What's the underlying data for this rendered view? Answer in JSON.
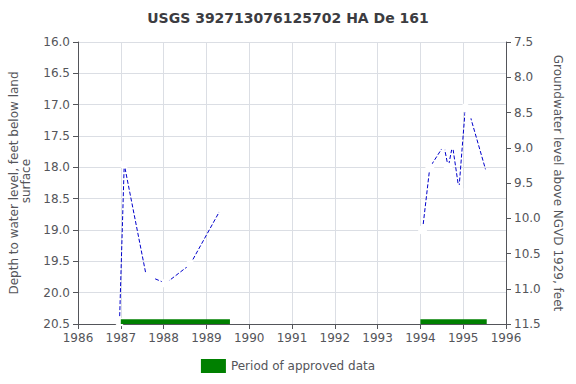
{
  "chart_data": {
    "type": "line",
    "title": "USGS 392713076125702 HA De 161",
    "ylabel": "Depth to water level, feet below land\n surface",
    "y2label": "Groundwater level above NGVD 1929, feet",
    "xlim": [
      1986,
      1996
    ],
    "xticks": [
      1986,
      1987,
      1988,
      1989,
      1990,
      1991,
      1992,
      1993,
      1994,
      1995,
      1996
    ],
    "ylim": [
      20.5,
      16.0
    ],
    "yticks": [
      {
        "value": 16.0,
        "label": "16.0"
      },
      16.5,
      {
        "value": 17.0,
        "label": "17.0"
      },
      17.5,
      {
        "value": 18.0,
        "label": "18.0"
      },
      18.5,
      {
        "value": 19.0,
        "label": "19.0"
      },
      19.5,
      {
        "value": 20.0,
        "label": "20.0"
      },
      20.5
    ],
    "y2lim": [
      11.5,
      7.5
    ],
    "y2ticks": [
      7.5,
      {
        "value": 8.0,
        "label": "8.0"
      },
      8.5,
      {
        "value": 9.0,
        "label": "9.0"
      },
      9.5,
      {
        "value": 10.0,
        "label": "10.0"
      },
      10.5,
      {
        "value": 11.0,
        "label": "11.0"
      },
      11.5
    ],
    "grid": true,
    "legend": "bottom",
    "series": [
      {
        "type": "line",
        "color": "#0000cc",
        "marker": "circle",
        "line_style": "dashed",
        "x": [
          1986.97,
          1987.08,
          1987.6,
          1987.7,
          1988.05,
          1988.62,
          1989.35
        ],
        "values": [
          20.47,
          17.95,
          19.75,
          19.75,
          19.85,
          19.55,
          18.65
        ]
      },
      {
        "type": "line",
        "color": "#0000cc",
        "marker": "circle",
        "line_style": "dashed",
        "x": [
          1994.05,
          1994.22,
          1994.55,
          1994.65,
          1994.75,
          1994.9,
          1995.05,
          1995.15,
          1995.55
        ],
        "values": [
          19.0,
          18.0,
          17.65,
          18.0,
          17.65,
          18.35,
          17.05,
          17.15,
          18.1
        ]
      },
      {
        "name": "Period of approved data",
        "type": "bar",
        "orientation": "horizontal",
        "color": "#008000",
        "x_start": [
          1987.0,
          1994.0
        ],
        "x_end": [
          1989.55,
          1995.55
        ],
        "y": 20.47,
        "height": 0.09
      }
    ]
  }
}
